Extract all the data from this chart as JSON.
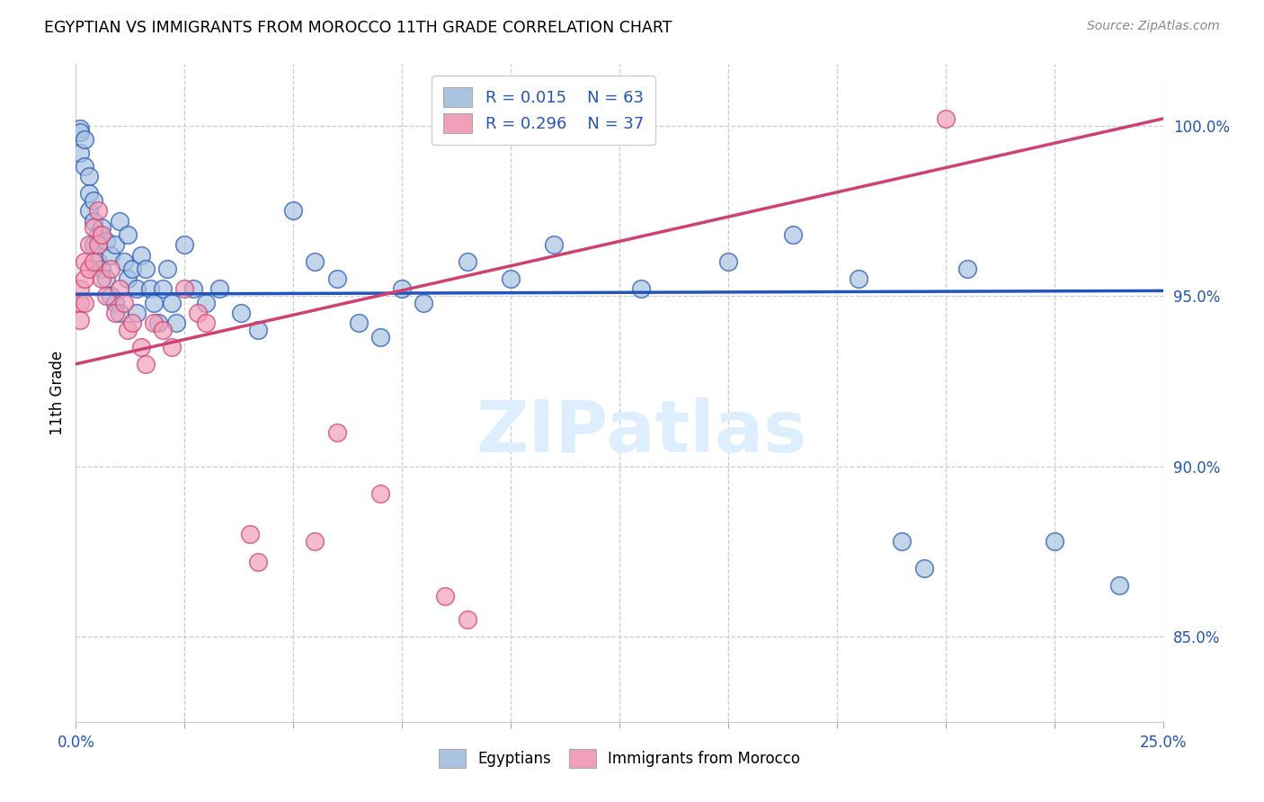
{
  "title": "EGYPTIAN VS IMMIGRANTS FROM MOROCCO 11TH GRADE CORRELATION CHART",
  "source": "Source: ZipAtlas.com",
  "ylabel": "11th Grade",
  "x_min": 0.0,
  "x_max": 0.25,
  "y_min": 0.825,
  "y_max": 1.018,
  "yticks": [
    0.85,
    0.9,
    0.95,
    1.0
  ],
  "ytick_labels": [
    "85.0%",
    "90.0%",
    "95.0%",
    "100.0%"
  ],
  "xticks": [
    0.0,
    0.025,
    0.05,
    0.075,
    0.1,
    0.125,
    0.15,
    0.175,
    0.2,
    0.225,
    0.25
  ],
  "legend_r_blue": "R = 0.015",
  "legend_n_blue": "N = 63",
  "legend_r_pink": "R = 0.296",
  "legend_n_pink": "N = 37",
  "legend_label_blue": "Egyptians",
  "legend_label_pink": "Immigrants from Morocco",
  "blue_color": "#aac4e0",
  "pink_color": "#f0a0b8",
  "trendline_blue_color": "#2255bb",
  "trendline_pink_color": "#d04070",
  "watermark_color": "#ddeeff",
  "blue_trend_x0": 0.0,
  "blue_trend_y0": 0.9505,
  "blue_trend_x1": 0.25,
  "blue_trend_y1": 0.9515,
  "pink_trend_x0": 0.0,
  "pink_trend_y0": 0.93,
  "pink_trend_x1": 0.25,
  "pink_trend_y1": 1.002,
  "blue_x": [
    0.001,
    0.001,
    0.001,
    0.002,
    0.002,
    0.003,
    0.003,
    0.003,
    0.004,
    0.004,
    0.004,
    0.005,
    0.005,
    0.006,
    0.006,
    0.007,
    0.007,
    0.008,
    0.008,
    0.009,
    0.009,
    0.01,
    0.01,
    0.011,
    0.012,
    0.012,
    0.013,
    0.014,
    0.014,
    0.015,
    0.016,
    0.017,
    0.018,
    0.019,
    0.02,
    0.021,
    0.022,
    0.023,
    0.025,
    0.027,
    0.03,
    0.033,
    0.038,
    0.042,
    0.05,
    0.055,
    0.06,
    0.065,
    0.07,
    0.075,
    0.08,
    0.09,
    0.1,
    0.11,
    0.13,
    0.15,
    0.165,
    0.18,
    0.19,
    0.195,
    0.205,
    0.225,
    0.24
  ],
  "blue_y": [
    0.999,
    0.998,
    0.992,
    0.996,
    0.988,
    0.985,
    0.98,
    0.975,
    0.978,
    0.972,
    0.965,
    0.968,
    0.96,
    0.97,
    0.958,
    0.966,
    0.955,
    0.962,
    0.95,
    0.965,
    0.948,
    0.972,
    0.945,
    0.96,
    0.968,
    0.955,
    0.958,
    0.952,
    0.945,
    0.962,
    0.958,
    0.952,
    0.948,
    0.942,
    0.952,
    0.958,
    0.948,
    0.942,
    0.965,
    0.952,
    0.948,
    0.952,
    0.945,
    0.94,
    0.975,
    0.96,
    0.955,
    0.942,
    0.938,
    0.952,
    0.948,
    0.96,
    0.955,
    0.965,
    0.952,
    0.96,
    0.968,
    0.955,
    0.878,
    0.87,
    0.958,
    0.878,
    0.865
  ],
  "pink_x": [
    0.001,
    0.001,
    0.001,
    0.002,
    0.002,
    0.002,
    0.003,
    0.003,
    0.004,
    0.004,
    0.005,
    0.005,
    0.006,
    0.006,
    0.007,
    0.008,
    0.009,
    0.01,
    0.011,
    0.012,
    0.013,
    0.015,
    0.016,
    0.018,
    0.02,
    0.022,
    0.025,
    0.028,
    0.03,
    0.04,
    0.042,
    0.055,
    0.06,
    0.07,
    0.085,
    0.09,
    0.2
  ],
  "pink_y": [
    0.952,
    0.948,
    0.943,
    0.96,
    0.955,
    0.948,
    0.965,
    0.958,
    0.97,
    0.96,
    0.975,
    0.965,
    0.955,
    0.968,
    0.95,
    0.958,
    0.945,
    0.952,
    0.948,
    0.94,
    0.942,
    0.935,
    0.93,
    0.942,
    0.94,
    0.935,
    0.952,
    0.945,
    0.942,
    0.88,
    0.872,
    0.878,
    0.91,
    0.892,
    0.862,
    0.855,
    1.002
  ]
}
